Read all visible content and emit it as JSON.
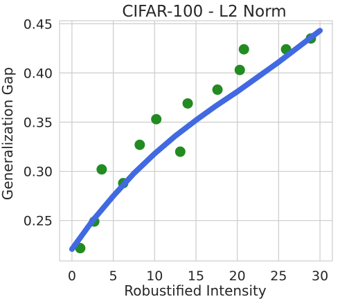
{
  "chart_data": {
    "type": "scatter",
    "title": "CIFAR-100 - L2 Norm",
    "xlabel": "Robustified Intensity",
    "ylabel": "Generalization Gap",
    "xlim": [
      -1.5,
      31.5
    ],
    "ylim": [
      0.209,
      0.453
    ],
    "xticks": [
      0,
      5,
      10,
      15,
      20,
      25,
      30
    ],
    "xtick_labels": [
      "0",
      "5",
      "10",
      "15",
      "20",
      "25",
      "30"
    ],
    "yticks": [
      0.25,
      0.3,
      0.35,
      0.4,
      0.45
    ],
    "ytick_labels": [
      "0.25",
      "0.30",
      "0.35",
      "0.40",
      "0.45"
    ],
    "grid": true,
    "series": [
      {
        "kind": "points",
        "color": "#228b22",
        "x": [
          1.0,
          2.7,
          3.6,
          6.2,
          8.2,
          10.2,
          13.1,
          14.0,
          17.6,
          20.3,
          20.8,
          25.9,
          28.9
        ],
        "y": [
          0.222,
          0.249,
          0.302,
          0.288,
          0.327,
          0.353,
          0.32,
          0.369,
          0.383,
          0.403,
          0.424,
          0.424,
          0.435
        ]
      },
      {
        "kind": "fit-curve",
        "color": "#4169e1",
        "x": [
          0,
          2.5,
          5,
          7.5,
          10,
          12.5,
          15,
          17.5,
          20,
          22.5,
          25,
          27.5,
          30
        ],
        "y": [
          0.221,
          0.25,
          0.275,
          0.298,
          0.318,
          0.336,
          0.352,
          0.367,
          0.381,
          0.396,
          0.411,
          0.427,
          0.443
        ]
      }
    ]
  }
}
